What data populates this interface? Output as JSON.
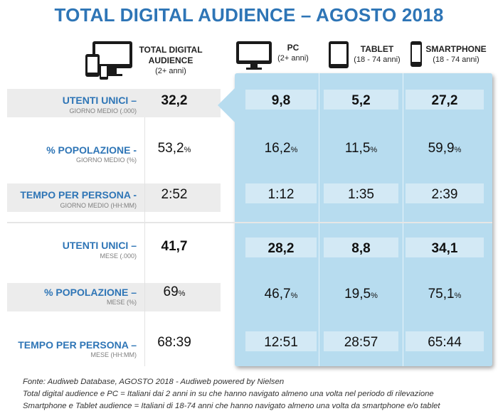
{
  "title": "TOTAL DIGITAL AUDIENCE – AGOSTO 2018",
  "columns": {
    "total": {
      "line1": "TOTAL DIGITAL",
      "line2": "AUDIENCE",
      "sub": "(2+ anni)"
    },
    "pc": {
      "label": "PC",
      "sub": "(2+ anni)"
    },
    "tablet": {
      "label": "TABLET",
      "sub": "(18 - 74 anni)"
    },
    "smartphone": {
      "label": "SMARTPHONE",
      "sub": "(18 - 74 anni)"
    }
  },
  "rows": [
    {
      "label": "UTENTI UNICI –",
      "sub": "GIORNO MEDIO (.000)",
      "total": "32,2",
      "pc": "9,8",
      "tablet": "5,2",
      "smartphone": "27,2"
    },
    {
      "label": "% POPOLAZIONE -",
      "sub": "GIORNO MEDIO (%)",
      "total": "53,2",
      "pc": "16,2",
      "tablet": "11,5",
      "smartphone": "59,9"
    },
    {
      "label": "TEMPO PER PERSONA -",
      "sub": "GIORNO MEDIO (HH:MM)",
      "total": "2:52",
      "pc": "1:12",
      "tablet": "1:35",
      "smartphone": "2:39"
    },
    {
      "label": "UTENTI UNICI –",
      "sub": "MESE (.000)",
      "total": "41,7",
      "pc": "28,2",
      "tablet": "8,8",
      "smartphone": "34,1"
    },
    {
      "label": "% POPOLAZIONE –",
      "sub": "MESE (%)",
      "total": "69",
      "pc": "46,7",
      "tablet": "19,5",
      "smartphone": "75,1"
    },
    {
      "label": "TEMPO PER PERSONA –",
      "sub": "MESE (HH:MM)",
      "total": "68:39",
      "pc": "12:51",
      "tablet": "28:57",
      "smartphone": "65:44"
    }
  ],
  "percent_sign": "%",
  "footnotes": [
    "Fonte: Audiweb Database, AGOSTO 2018 - Audiweb powered by Nielsen",
    "Total digital audience e PC = Italiani dai 2 anni in su che hanno navigato almeno una volta nel periodo di rilevazione",
    "Smartphone e Tablet audience = Italiani di 18-74 anni che hanno navigato almeno una volta da smartphone e/o tablet"
  ],
  "colors": {
    "title": "#2e75b6",
    "panel": "#b7dcef",
    "label": "#2e75b6"
  },
  "icons": [
    "multi-device-icon",
    "monitor-icon",
    "tablet-icon",
    "smartphone-icon"
  ]
}
